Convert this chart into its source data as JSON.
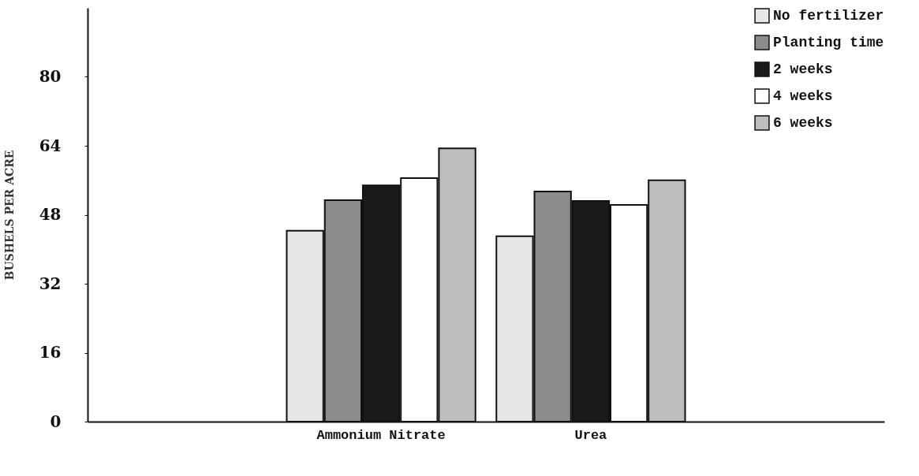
{
  "chart_data": {
    "type": "bar",
    "ylabel": "BUSHELS PER ACRE",
    "categories": [
      "Ammonium Nitrate",
      "Urea"
    ],
    "series": [
      {
        "name": "No fertilizer",
        "color": "#e6e6e6",
        "values": [
          44.3,
          43
        ]
      },
      {
        "name": "Planting time",
        "color": "#8c8c8c",
        "values": [
          51.4,
          53.4
        ]
      },
      {
        "name": "2 weeks",
        "color": "#1a1a1a",
        "values": [
          54.8,
          51.2
        ]
      },
      {
        "name": "4 weeks",
        "color": "#ffffff",
        "values": [
          56.5,
          50.3
        ]
      },
      {
        "name": "6 weeks",
        "color": "#bdbdbd",
        "values": [
          63.4,
          56
        ]
      }
    ],
    "ylim": [
      0,
      96
    ],
    "yticks": [
      0,
      16,
      32,
      48,
      64,
      80
    ],
    "grid": false,
    "legend": "top right"
  }
}
